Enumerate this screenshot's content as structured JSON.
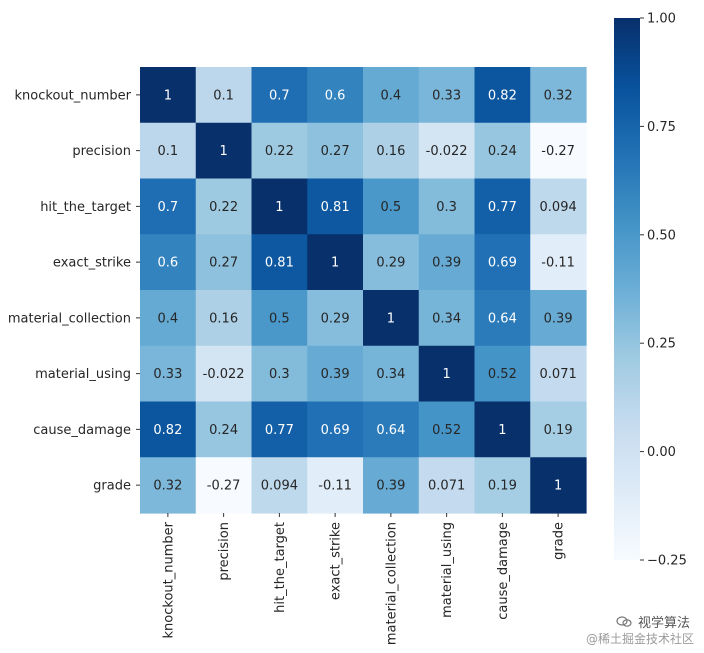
{
  "chart_data": {
    "type": "heatmap",
    "title": "",
    "xlabel": "",
    "ylabel": "",
    "colormap": "Blues",
    "vmin": -0.25,
    "vmax": 1.0,
    "rows": [
      "knockout_number",
      "precision",
      "hit_the_target",
      "exact_strike",
      "material_collection",
      "material_using",
      "cause_damage",
      "grade"
    ],
    "cols": [
      "knockout_number",
      "precision",
      "hit_the_target",
      "exact_strike",
      "material_collection",
      "material_using",
      "cause_damage",
      "grade"
    ],
    "values": [
      [
        1,
        0.1,
        0.7,
        0.6,
        0.4,
        0.33,
        0.82,
        0.32
      ],
      [
        0.1,
        1,
        0.22,
        0.27,
        0.16,
        -0.022,
        0.24,
        -0.27
      ],
      [
        0.7,
        0.22,
        1,
        0.81,
        0.5,
        0.3,
        0.77,
        0.094
      ],
      [
        0.6,
        0.27,
        0.81,
        1,
        0.29,
        0.39,
        0.69,
        -0.11
      ],
      [
        0.4,
        0.16,
        0.5,
        0.29,
        1,
        0.34,
        0.64,
        0.39
      ],
      [
        0.33,
        -0.022,
        0.3,
        0.39,
        0.34,
        1,
        0.52,
        0.071
      ],
      [
        0.82,
        0.24,
        0.77,
        0.69,
        0.64,
        0.52,
        1,
        0.19
      ],
      [
        0.32,
        -0.27,
        0.094,
        -0.11,
        0.39,
        0.071,
        0.19,
        1
      ]
    ],
    "annotations": [
      [
        "1",
        "0.1",
        "0.7",
        "0.6",
        "0.4",
        "0.33",
        "0.82",
        "0.32"
      ],
      [
        "0.1",
        "1",
        "0.22",
        "0.27",
        "0.16",
        "-0.022",
        "0.24",
        "-0.27"
      ],
      [
        "0.7",
        "0.22",
        "1",
        "0.81",
        "0.5",
        "0.3",
        "0.77",
        "0.094"
      ],
      [
        "0.6",
        "0.27",
        "0.81",
        "1",
        "0.29",
        "0.39",
        "0.69",
        "-0.11"
      ],
      [
        "0.4",
        "0.16",
        "0.5",
        "0.29",
        "1",
        "0.34",
        "0.64",
        "0.39"
      ],
      [
        "0.33",
        "-0.022",
        "0.3",
        "0.39",
        "0.34",
        "1",
        "0.52",
        "0.071"
      ],
      [
        "0.82",
        "0.24",
        "0.77",
        "0.69",
        "0.64",
        "0.52",
        "1",
        "0.19"
      ],
      [
        "0.32",
        "-0.27",
        "0.094",
        "-0.11",
        "0.39",
        "0.071",
        "0.19",
        "1"
      ]
    ],
    "colorbar": {
      "ticks": [
        1.0,
        0.75,
        0.5,
        0.25,
        0.0,
        -0.25
      ],
      "tick_labels": [
        "1.00",
        "0.75",
        "0.50",
        "0.25",
        "0.00",
        "−0.25"
      ]
    },
    "grid": false,
    "legend": "colorbar-right"
  },
  "watermark": {
    "line1": "视学算法",
    "line2": "@稀土掘金技术社区"
  }
}
